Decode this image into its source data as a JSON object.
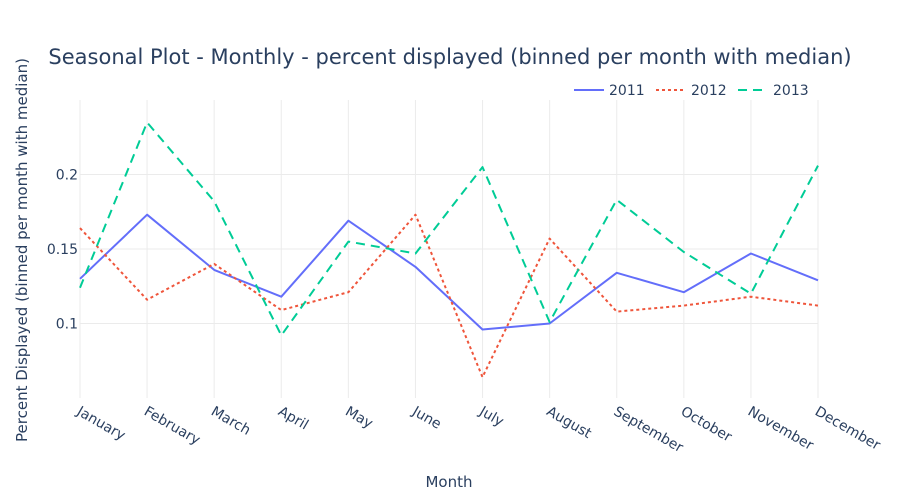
{
  "chart_data": {
    "type": "line",
    "title": "Seasonal Plot - Monthly - percent displayed (binned per month with median)",
    "xlabel": "Month",
    "ylabel": "Percent Displayed (binned per month with median)",
    "categories": [
      "January",
      "February",
      "March",
      "April",
      "May",
      "June",
      "July",
      "August",
      "September",
      "October",
      "November",
      "December"
    ],
    "ylim": [
      0.05,
      0.25
    ],
    "yticks": [
      0.1,
      0.15,
      0.2
    ],
    "ytick_labels": [
      "0.1",
      "0.15",
      "0.2"
    ],
    "grid": true,
    "legend_position": "top-right",
    "series": [
      {
        "name": "2011",
        "color": "#636efa",
        "dash": "solid",
        "values": [
          0.13,
          0.173,
          0.136,
          0.118,
          0.169,
          0.138,
          0.096,
          0.1,
          0.134,
          0.121,
          0.147,
          0.129
        ]
      },
      {
        "name": "2012",
        "color": "#ef553b",
        "dash": "dot",
        "values": [
          0.164,
          0.116,
          0.14,
          0.109,
          0.121,
          0.173,
          0.064,
          0.157,
          0.108,
          0.112,
          0.118,
          0.112
        ]
      },
      {
        "name": "2013",
        "color": "#00cc96",
        "dash": "dash",
        "values": [
          0.124,
          0.235,
          0.182,
          0.092,
          0.155,
          0.147,
          0.205,
          0.101,
          0.183,
          0.148,
          0.12,
          0.206
        ]
      }
    ]
  }
}
